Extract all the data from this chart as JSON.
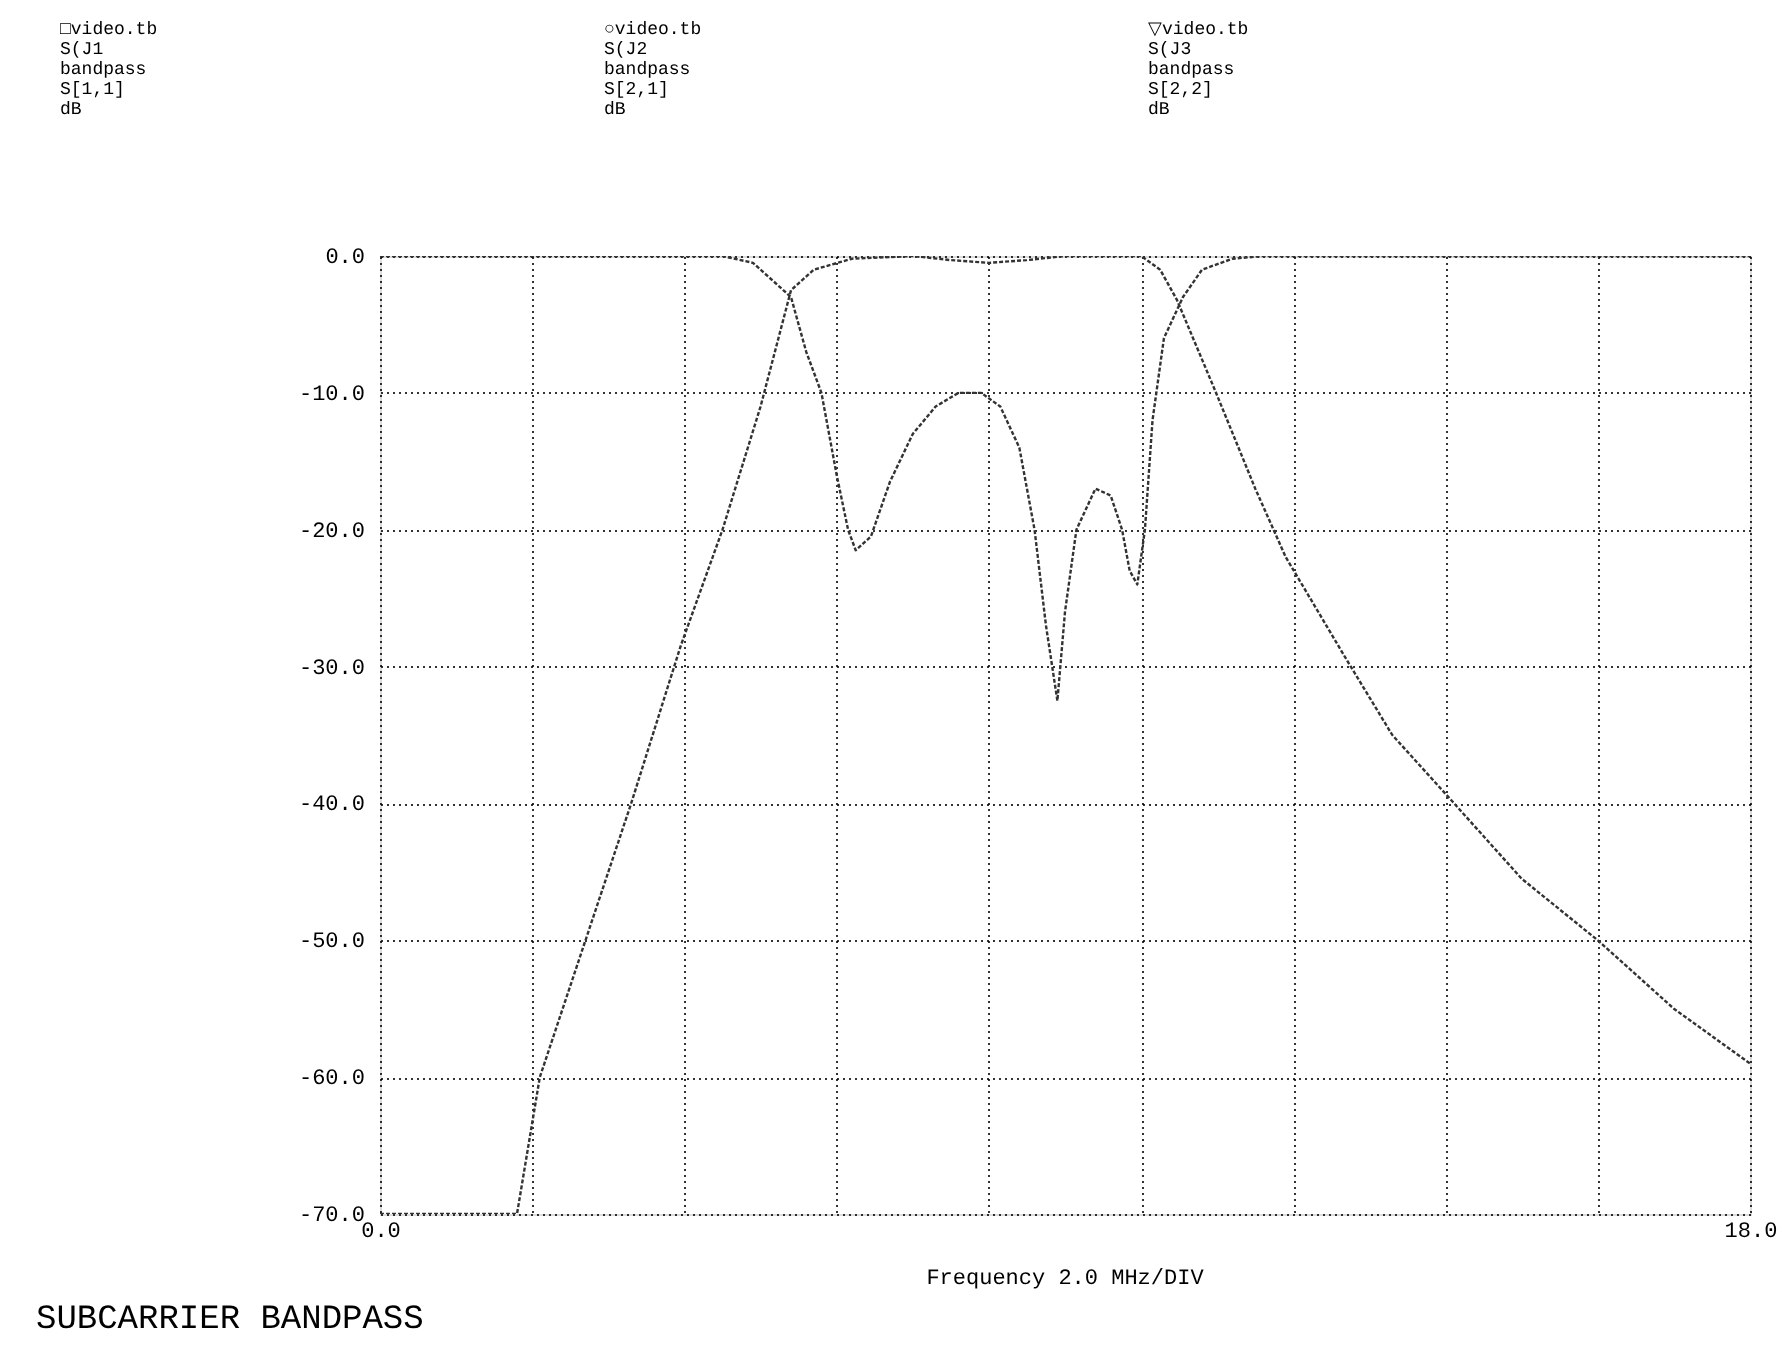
{
  "chart_data": {
    "type": "line",
    "title": "SUBCARRIER BANDPASS",
    "xlabel": "Frequency 2.0 MHz/DIV",
    "annotations": [
      "□video.tb\nS(J1\nbandpass\nS[1,1]\ndB",
      "○video.tb\nS(J2\nbandpass\nS[2,1]\ndB",
      "▽video.tb\nS(J3\nbandpass\nS[2,2]\ndB"
    ],
    "xlim": [
      0,
      18
    ],
    "ylim": [
      -70,
      0
    ],
    "xticks": [
      {
        "value": 0,
        "label": "0.0"
      },
      {
        "value": 2,
        "label": null
      },
      {
        "value": 4,
        "label": null
      },
      {
        "value": 6,
        "label": null
      },
      {
        "value": 8,
        "label": null
      },
      {
        "value": 10,
        "label": null
      },
      {
        "value": 12,
        "label": null
      },
      {
        "value": 14,
        "label": null
      },
      {
        "value": 16,
        "label": null
      },
      {
        "value": 18,
        "label": "18.0"
      }
    ],
    "yticks": [
      {
        "value": 0,
        "label": "0.0"
      },
      {
        "value": -10,
        "label": "-10.0"
      },
      {
        "value": -20,
        "label": "-20.0"
      },
      {
        "value": -30,
        "label": "-30.0"
      },
      {
        "value": -40,
        "label": "-40.0"
      },
      {
        "value": -50,
        "label": "-50.0"
      },
      {
        "value": -60,
        "label": "-60.0"
      },
      {
        "value": -70,
        "label": "-70.0"
      }
    ],
    "grid": true,
    "marker": "none",
    "line_style": "dotted",
    "series": [
      {
        "color": "#333333",
        "x": [
          0,
          4.5,
          4.9,
          5.1,
          5.4,
          5.6,
          5.8,
          6.0,
          6.15,
          6.25,
          6.45,
          6.7,
          7.0,
          7.3,
          7.6,
          7.9,
          8.15,
          8.4,
          8.6,
          8.75,
          8.9,
          9.0,
          9.15,
          9.4,
          9.6,
          9.75,
          9.85,
          9.95,
          10.05,
          10.15,
          10.3,
          10.55,
          10.8,
          11.2,
          11.6,
          18
        ],
        "values": [
          0,
          0,
          -0.5,
          -1.5,
          -3,
          -7,
          -10,
          -16,
          -20,
          -21.5,
          -20.5,
          -16.5,
          -13,
          -11,
          -10,
          -10,
          -11,
          -14,
          -20,
          -27,
          -32.5,
          -26,
          -20,
          -17,
          -17.5,
          -20,
          -23,
          -24,
          -20,
          -12,
          -6,
          -3,
          -1,
          -0.2,
          0,
          0
        ]
      },
      {
        "color": "#333333",
        "x": [
          0,
          1.8,
          2.1,
          2.7,
          3.3,
          3.95,
          4.5,
          5.0,
          5.4,
          5.7,
          6.2,
          7.0,
          7.5,
          8.0,
          8.5,
          9.0,
          10.0,
          10.25,
          10.47,
          10.97,
          11.5,
          11.9,
          12.7,
          13.3,
          14.0,
          15.0,
          16.0,
          17.0,
          18.0
        ],
        "values": [
          -70,
          -70,
          -60,
          -50,
          -40,
          -28.5,
          -20,
          -11,
          -2.5,
          -1,
          -0.2,
          0,
          -0.3,
          -0.5,
          -0.3,
          0,
          0,
          -1,
          -3.2,
          -9.8,
          -17,
          -22,
          -29.5,
          -35,
          -39.3,
          -45.5,
          -50,
          -55,
          -59
        ]
      }
    ]
  }
}
